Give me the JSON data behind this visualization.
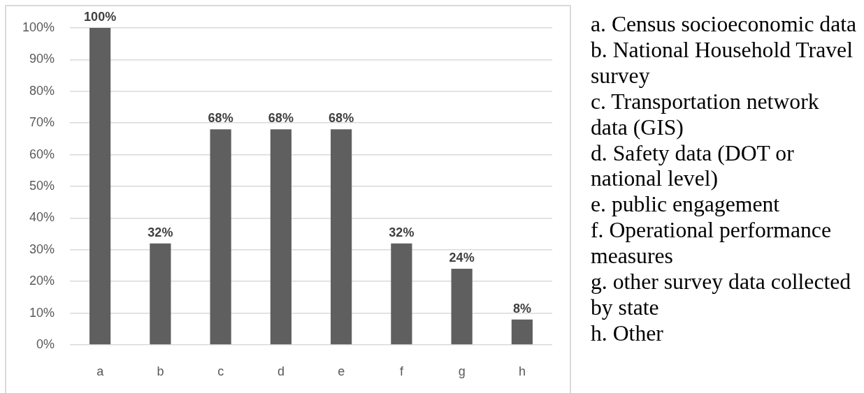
{
  "chart_data": {
    "type": "bar",
    "categories": [
      "a",
      "b",
      "c",
      "d",
      "e",
      "f",
      "g",
      "h"
    ],
    "values": [
      100,
      32,
      68,
      68,
      68,
      32,
      24,
      8
    ],
    "value_labels": [
      "100%",
      "32%",
      "68%",
      "68%",
      "68%",
      "32%",
      "24%",
      "8%"
    ],
    "color": "#5f5f5f",
    "ylim": [
      0,
      100
    ],
    "yticks": [
      {
        "value": 0,
        "label": "0%"
      },
      {
        "value": 10,
        "label": "10%"
      },
      {
        "value": 20,
        "label": "20%"
      },
      {
        "value": 30,
        "label": "30%"
      },
      {
        "value": 40,
        "label": "40%"
      },
      {
        "value": 50,
        "label": "50%"
      },
      {
        "value": 60,
        "label": "60%"
      },
      {
        "value": 70,
        "label": "70%"
      },
      {
        "value": 80,
        "label": "80%"
      },
      {
        "value": 90,
        "label": "90%"
      },
      {
        "value": 100,
        "label": "100%"
      }
    ],
    "grid": "y",
    "annotations": [
      "a. Census socioeconomic data",
      "b. National Household Travel survey",
      "c. Transportation network data (GIS)",
      "d. Safety data (DOT or national level)",
      "e. public engagement",
      "f. Operational performance measures",
      "g. other survey data collected by state",
      "h. Other"
    ]
  }
}
